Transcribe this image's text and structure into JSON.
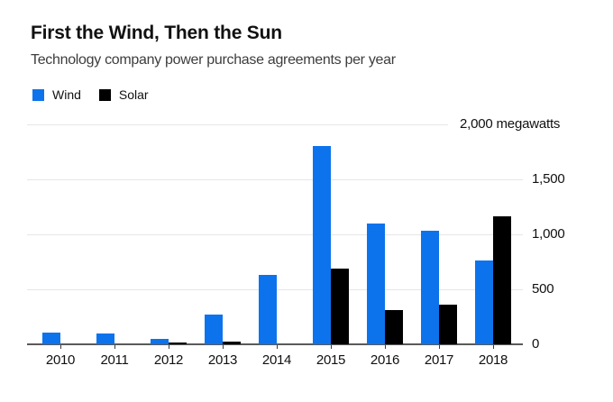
{
  "chart_data": {
    "type": "bar",
    "title": "First the Wind, Then the Sun",
    "subtitle": "Technology company power purchase agreements per year",
    "ylabel": "megawatts",
    "ylim": [
      0,
      2000
    ],
    "grid": true,
    "legend_position": "top-left",
    "categories": [
      "2010",
      "2011",
      "2012",
      "2013",
      "2014",
      "2015",
      "2016",
      "2017",
      "2018"
    ],
    "series": [
      {
        "name": "Wind",
        "color": "#0d73ec",
        "values": [
          110,
          100,
          50,
          270,
          630,
          1800,
          1100,
          1030,
          760
        ]
      },
      {
        "name": "Solar",
        "color": "#000000",
        "values": [
          0,
          0,
          20,
          25,
          0,
          690,
          310,
          360,
          1160
        ]
      }
    ],
    "yticks": [
      {
        "value": 0,
        "label": "0"
      },
      {
        "value": 500,
        "label": "500"
      },
      {
        "value": 1000,
        "label": "1,000"
      },
      {
        "value": 1500,
        "label": "1,500"
      },
      {
        "value": 2000,
        "label": "2,000 megawatts"
      }
    ]
  }
}
